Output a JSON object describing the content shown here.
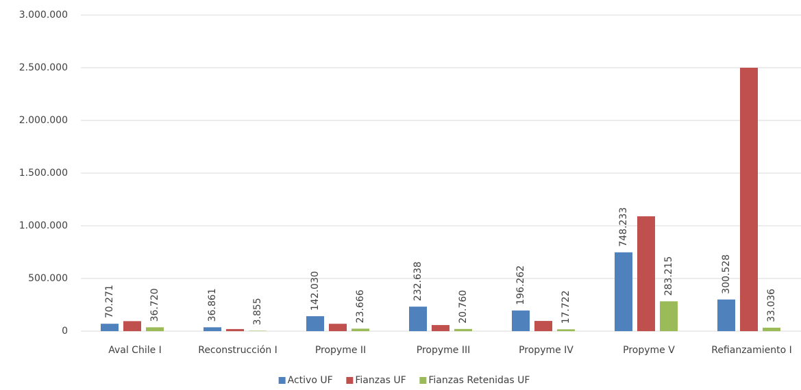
{
  "chart_data": {
    "type": "bar",
    "categories": [
      "Aval Chile I",
      "Reconstrucción I",
      "Propyme II",
      "Propyme III",
      "Propyme IV",
      "Propyme V",
      "Refianzamiento I"
    ],
    "series": [
      {
        "name": "Activo UF",
        "color": "#4f81bd",
        "values": [
          70271,
          36861,
          142030,
          232638,
          196262,
          748233,
          300528
        ],
        "value_labels": [
          "70.271",
          "36.861",
          "142.030",
          "232.638",
          "196.262",
          "748.233",
          "300.528"
        ]
      },
      {
        "name": "Fianzas UF",
        "color": "#c0504d",
        "values": [
          95000,
          20000,
          70000,
          58000,
          97000,
          1090000,
          2500000
        ]
      },
      {
        "name": "Fianzas Retenidas UF",
        "color": "#9bbb59",
        "values": [
          36720,
          3855,
          23666,
          20760,
          17722,
          283215,
          33036
        ],
        "value_labels": [
          "36.720",
          "3.855",
          "23.666",
          "20.760",
          "17.722",
          "283.215",
          "33.036"
        ]
      }
    ],
    "ylim": [
      0,
      3000000
    ],
    "yticks": [
      0,
      {
        "value": 500000,
        "label": "500.000"
      },
      {
        "value": 1000000,
        "label": "1.000.000"
      },
      {
        "value": 1500000,
        "label": "1.500.000"
      },
      {
        "value": 2000000,
        "label": "2.000.000"
      },
      {
        "value": 2500000,
        "label": "2.500.000"
      },
      {
        "value": 3000000,
        "label": "3.000.000"
      }
    ],
    "grid": true,
    "legend": "bottom"
  }
}
